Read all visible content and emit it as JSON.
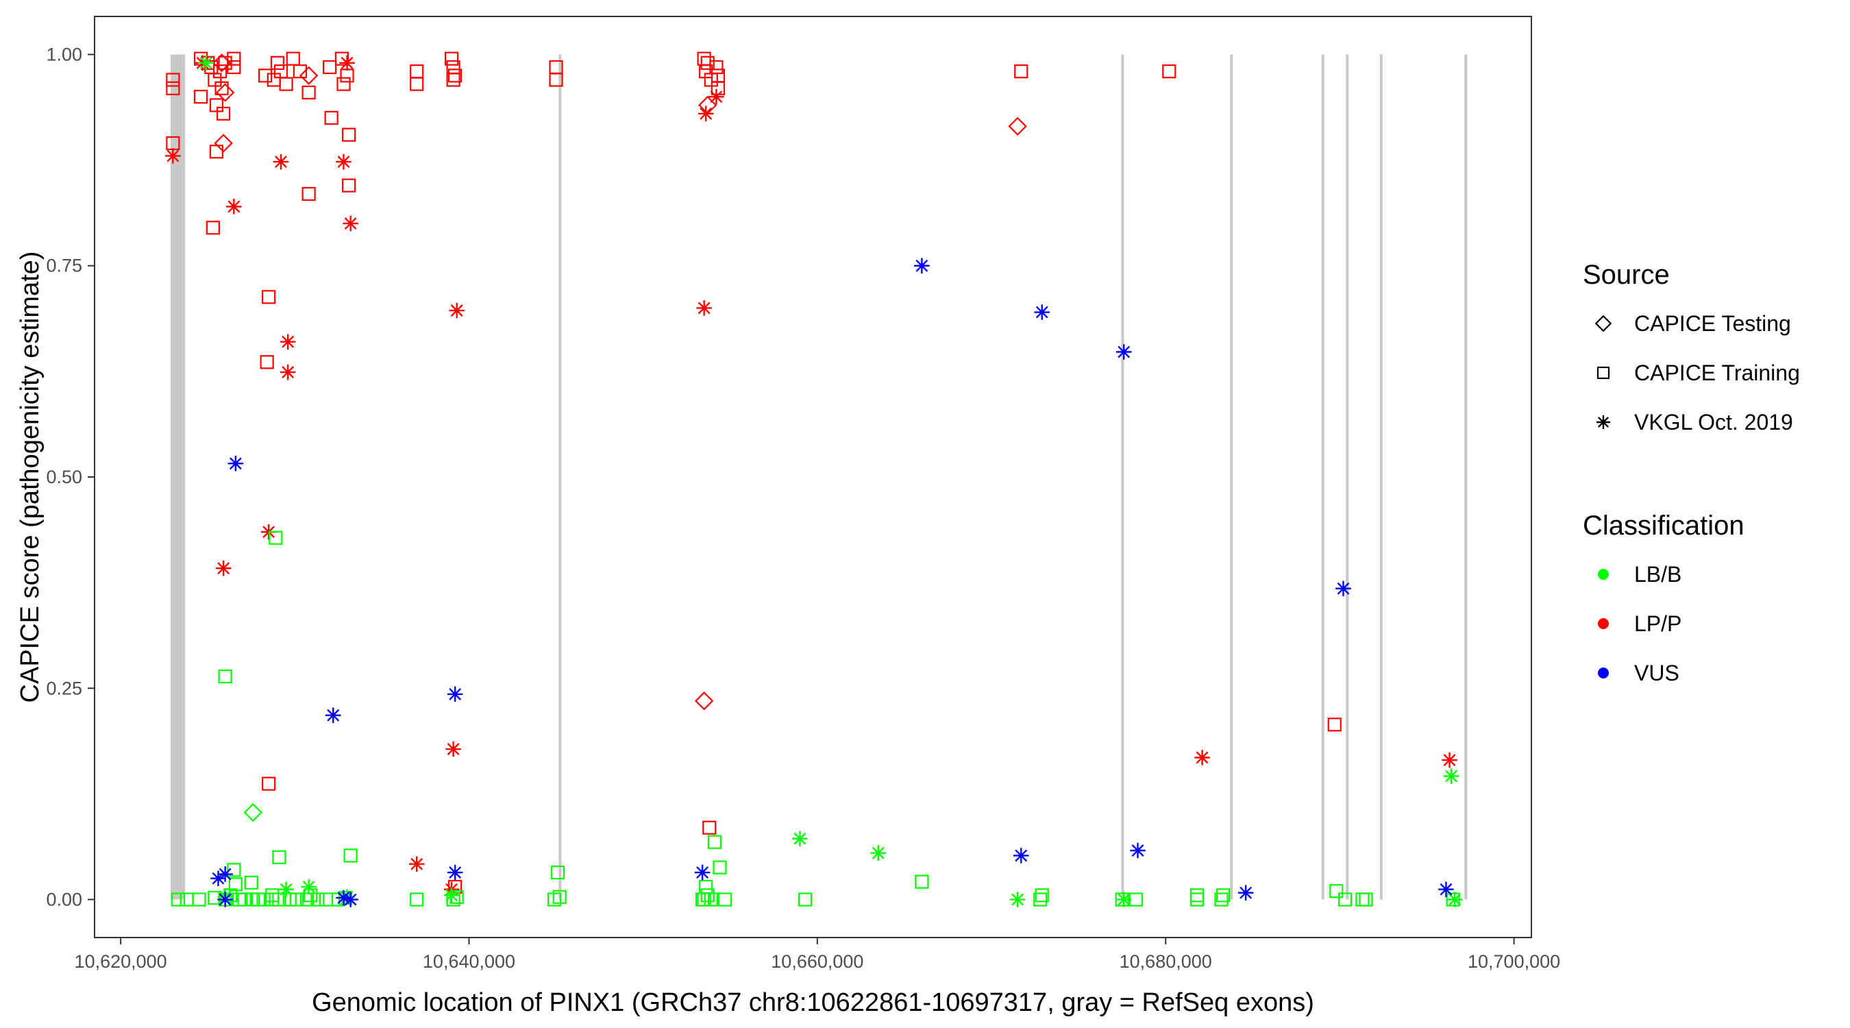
{
  "chart_data": {
    "type": "scatter",
    "title": "",
    "xlabel": "Genomic location of PINX1 (GRCh37 chr8:10622861-10697317, gray = RefSeq exons)",
    "ylabel": "CAPICE score (pathogenicity estimate)",
    "xlim": [
      10618500,
      10701000
    ],
    "ylim": [
      -0.045,
      1.045
    ],
    "x_ticks": [
      10620000,
      10640000,
      10660000,
      10680000,
      10700000
    ],
    "x_tick_labels": [
      "10,620,000",
      "10,640,000",
      "10,660,000",
      "10,680,000",
      "10,700,000"
    ],
    "y_ticks": [
      0,
      0.25,
      0.5,
      0.75,
      1
    ],
    "y_tick_labels": [
      "0.00",
      "0.25",
      "0.50",
      "0.75",
      "1.00"
    ],
    "grid": false,
    "legend_position": "right",
    "exons": [
      {
        "start": 10622861,
        "end": 10623700
      },
      {
        "start": 10645150,
        "end": 10645220
      },
      {
        "start": 10677450,
        "end": 10677560
      },
      {
        "start": 10683700,
        "end": 10683810
      },
      {
        "start": 10688950,
        "end": 10689050
      },
      {
        "start": 10690350,
        "end": 10690450
      },
      {
        "start": 10692300,
        "end": 10692450
      },
      {
        "start": 10697150,
        "end": 10697317
      }
    ],
    "exon_color": "#c8c8c8",
    "legends": [
      {
        "title": "Source",
        "entries": [
          {
            "label": "CAPICE Testing",
            "shape": "diamond"
          },
          {
            "label": "CAPICE Training",
            "shape": "square"
          },
          {
            "label": "VKGL Oct. 2019",
            "shape": "asterisk"
          }
        ]
      },
      {
        "title": "Classification",
        "entries": [
          {
            "label": "LB/B",
            "color": "#00ff00"
          },
          {
            "label": "LP/P",
            "color": "#ff0000"
          },
          {
            "label": "VUS",
            "color": "#0000ff"
          }
        ]
      }
    ],
    "colors": {
      "LB/B": "#00ff00",
      "LP/P": "#ff0000",
      "VUS": "#0000ff"
    },
    "series": [
      {
        "source": "CAPICE Training",
        "classification": "LP/P",
        "shape": "square",
        "points": [
          [
            10623000,
            0.97
          ],
          [
            10623000,
            0.96
          ],
          [
            10623000,
            0.895
          ],
          [
            10624600,
            0.995
          ],
          [
            10624600,
            0.95
          ],
          [
            10625000,
            0.99
          ],
          [
            10625200,
            0.985
          ],
          [
            10625400,
            0.97
          ],
          [
            10625500,
            0.94
          ],
          [
            10625700,
            0.98
          ],
          [
            10625800,
            0.96
          ],
          [
            10625900,
            0.93
          ],
          [
            10626000,
            0.99
          ],
          [
            10625500,
            0.885
          ],
          [
            10625300,
            0.795
          ],
          [
            10626500,
            0.995
          ],
          [
            10626500,
            0.985
          ],
          [
            10628300,
            0.975
          ],
          [
            10628800,
            0.97
          ],
          [
            10629000,
            0.99
          ],
          [
            10629200,
            0.98
          ],
          [
            10629500,
            0.965
          ],
          [
            10629900,
            0.995
          ],
          [
            10630300,
            0.98
          ],
          [
            10630800,
            0.955
          ],
          [
            10630800,
            0.835
          ],
          [
            10632000,
            0.985
          ],
          [
            10632100,
            0.925
          ],
          [
            10632700,
            0.995
          ],
          [
            10632800,
            0.965
          ],
          [
            10633000,
            0.975
          ],
          [
            10633100,
            0.905
          ],
          [
            10633100,
            0.845
          ],
          [
            10628500,
            0.713
          ],
          [
            10628400,
            0.636
          ],
          [
            10628500,
            0.137
          ],
          [
            10637000,
            0.98
          ],
          [
            10637000,
            0.965
          ],
          [
            10639000,
            0.995
          ],
          [
            10639100,
            0.985
          ],
          [
            10639200,
            0.975
          ],
          [
            10639100,
            0.97
          ],
          [
            10639200,
            0.015
          ],
          [
            10645000,
            0.985
          ],
          [
            10645000,
            0.97
          ],
          [
            10653500,
            0.995
          ],
          [
            10653700,
            0.99
          ],
          [
            10653600,
            0.98
          ],
          [
            10653900,
            0.97
          ],
          [
            10654200,
            0.985
          ],
          [
            10654300,
            0.975
          ],
          [
            10654300,
            0.96
          ],
          [
            10653800,
            0.085
          ],
          [
            10671700,
            0.98
          ],
          [
            10680200,
            0.98
          ],
          [
            10689700,
            0.207
          ]
        ]
      },
      {
        "source": "CAPICE Testing",
        "classification": "LP/P",
        "shape": "diamond",
        "points": [
          [
            10625800,
            0.99
          ],
          [
            10626000,
            0.955
          ],
          [
            10625900,
            0.895
          ],
          [
            10630800,
            0.975
          ],
          [
            10653700,
            0.94
          ],
          [
            10671500,
            0.915
          ],
          [
            10653500,
            0.235
          ]
        ]
      },
      {
        "source": "VKGL Oct. 2019",
        "classification": "LP/P",
        "shape": "asterisk",
        "points": [
          [
            10623000,
            0.88
          ],
          [
            10624700,
            0.99
          ],
          [
            10626500,
            0.82
          ],
          [
            10629200,
            0.873
          ],
          [
            10632800,
            0.873
          ],
          [
            10633200,
            0.8
          ],
          [
            10633000,
            0.99
          ],
          [
            10629600,
            0.66
          ],
          [
            10629600,
            0.624
          ],
          [
            10628500,
            0.435
          ],
          [
            10625900,
            0.392
          ],
          [
            10639300,
            0.697
          ],
          [
            10639100,
            0.178
          ],
          [
            10637000,
            0.042
          ],
          [
            10639000,
            0.012
          ],
          [
            10653600,
            0.93
          ],
          [
            10654200,
            0.95
          ],
          [
            10653500,
            0.7
          ],
          [
            10682100,
            0.168
          ],
          [
            10696300,
            0.165
          ]
        ]
      },
      {
        "source": "CAPICE Training",
        "classification": "LB/B",
        "shape": "square",
        "points": [
          [
            10623300,
            0.0
          ],
          [
            10623800,
            0.0
          ],
          [
            10624500,
            0.0
          ],
          [
            10625400,
            0.002
          ],
          [
            10626000,
            0.0
          ],
          [
            10626300,
            0.005
          ],
          [
            10626800,
            0.0
          ],
          [
            10627100,
            0.0
          ],
          [
            10627600,
            0.0
          ],
          [
            10627900,
            0.0
          ],
          [
            10628200,
            0.0
          ],
          [
            10628700,
            0.0
          ],
          [
            10629100,
            0.0
          ],
          [
            10629700,
            0.0
          ],
          [
            10630100,
            0.0
          ],
          [
            10630700,
            0.0
          ],
          [
            10631300,
            0.0
          ],
          [
            10631800,
            0.0
          ],
          [
            10632500,
            0.0
          ],
          [
            10626000,
            0.264
          ],
          [
            10628900,
            0.428
          ],
          [
            10629100,
            0.05
          ],
          [
            10633200,
            0.052
          ],
          [
            10626500,
            0.035
          ],
          [
            10627500,
            0.02
          ],
          [
            10626600,
            0.018
          ],
          [
            10628700,
            0.005
          ],
          [
            10630900,
            0.005
          ],
          [
            10632900,
            0.002
          ],
          [
            10637000,
            0.0
          ],
          [
            10639100,
            0.0
          ],
          [
            10639300,
            0.003
          ],
          [
            10644900,
            0.0
          ],
          [
            10645100,
            0.032
          ],
          [
            10645200,
            0.003
          ],
          [
            10653400,
            0.0
          ],
          [
            10653600,
            0.015
          ],
          [
            10653700,
            0.005
          ],
          [
            10653900,
            0.0
          ],
          [
            10654100,
            0.068
          ],
          [
            10654400,
            0.038
          ],
          [
            10654700,
            0.0
          ],
          [
            10653500,
            0.0
          ],
          [
            10659300,
            0.0
          ],
          [
            10666000,
            0.021
          ],
          [
            10672800,
            0.0
          ],
          [
            10672900,
            0.005
          ],
          [
            10677500,
            0.0
          ],
          [
            10678300,
            0.0
          ],
          [
            10681800,
            0.0
          ],
          [
            10681800,
            0.005
          ],
          [
            10683200,
            0.0
          ],
          [
            10683300,
            0.005
          ],
          [
            10689800,
            0.01
          ],
          [
            10690300,
            0.0
          ],
          [
            10691300,
            0.0
          ],
          [
            10691500,
            0.0
          ],
          [
            10696500,
            0.0
          ]
        ]
      },
      {
        "source": "CAPICE Testing",
        "classification": "LB/B",
        "shape": "diamond",
        "points": [
          [
            10627600,
            0.103
          ]
        ]
      },
      {
        "source": "VKGL Oct. 2019",
        "classification": "LB/B",
        "shape": "asterisk",
        "points": [
          [
            10624900,
            0.99
          ],
          [
            10626000,
            0.003
          ],
          [
            10629500,
            0.012
          ],
          [
            10630800,
            0.015
          ],
          [
            10633000,
            0.003
          ],
          [
            10639000,
            0.005
          ],
          [
            10659000,
            0.072
          ],
          [
            10663500,
            0.055
          ],
          [
            10671500,
            0.0
          ],
          [
            10677600,
            0.0
          ],
          [
            10696400,
            0.146
          ],
          [
            10696600,
            0.0
          ]
        ]
      },
      {
        "source": "VKGL Oct. 2019",
        "classification": "VUS",
        "shape": "asterisk",
        "points": [
          [
            10626600,
            0.516
          ],
          [
            10625600,
            0.025
          ],
          [
            10626000,
            0.03
          ],
          [
            10626000,
            0.0
          ],
          [
            10632200,
            0.218
          ],
          [
            10632800,
            0.002
          ],
          [
            10633200,
            0.0
          ],
          [
            10639200,
            0.243
          ],
          [
            10639200,
            0.032
          ],
          [
            10653400,
            0.032
          ],
          [
            10666000,
            0.75
          ],
          [
            10672900,
            0.695
          ],
          [
            10677600,
            0.648
          ],
          [
            10671700,
            0.052
          ],
          [
            10678400,
            0.058
          ],
          [
            10684600,
            0.008
          ],
          [
            10690200,
            0.368
          ],
          [
            10696100,
            0.012
          ]
        ]
      }
    ]
  }
}
